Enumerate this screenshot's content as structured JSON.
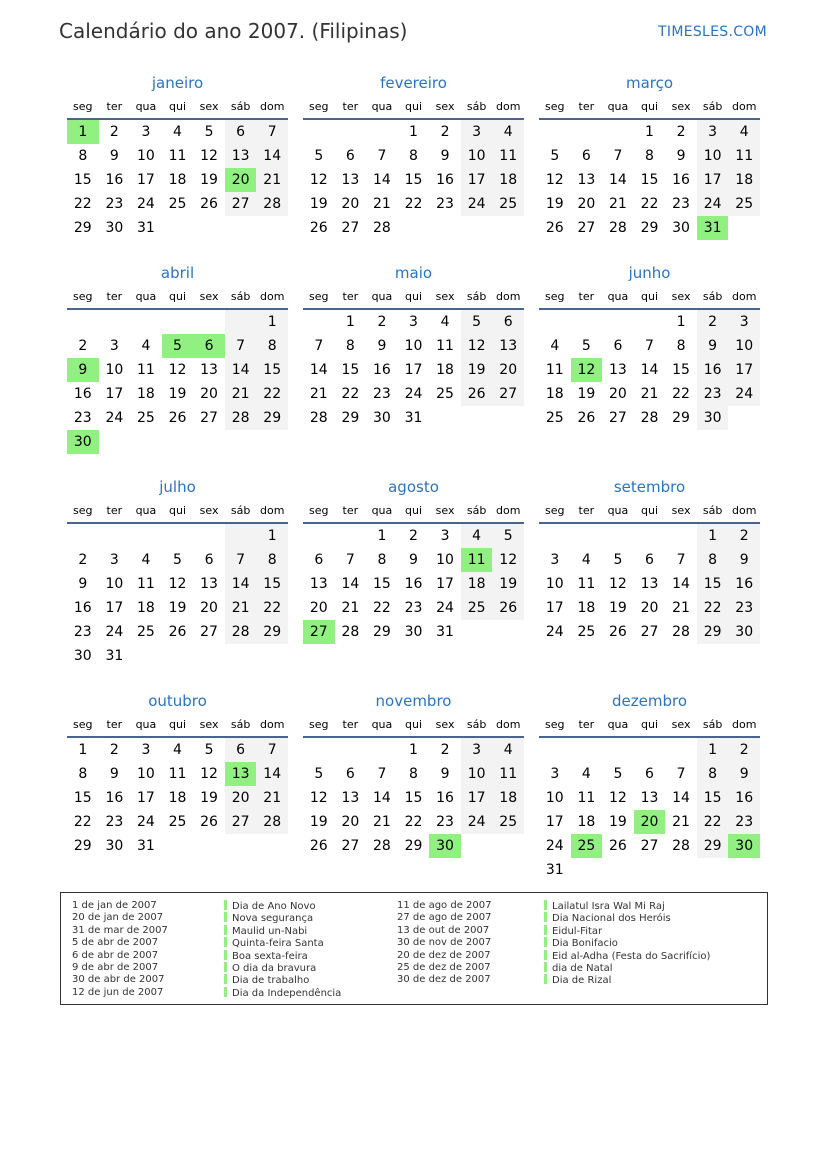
{
  "header": {
    "title": "Calendário do ano 2007. (Filipinas)",
    "brand": "TIMESLES.COM"
  },
  "year": 2007,
  "colors": {
    "accent": "#2a74c0",
    "holiday": "#90f080",
    "weekend": "#f3f3f3",
    "rule": "#4a6490"
  },
  "weekdays": [
    "seg",
    "ter",
    "qua",
    "qui",
    "sex",
    "sáb",
    "dom"
  ],
  "months": [
    {
      "name": "janeiro",
      "holidays": [
        1,
        20
      ]
    },
    {
      "name": "fevereiro",
      "holidays": []
    },
    {
      "name": "março",
      "holidays": [
        31
      ]
    },
    {
      "name": "abril",
      "holidays": [
        5,
        6,
        9,
        30
      ]
    },
    {
      "name": "maio",
      "holidays": []
    },
    {
      "name": "junho",
      "holidays": [
        12
      ]
    },
    {
      "name": "julho",
      "holidays": []
    },
    {
      "name": "agosto",
      "holidays": [
        11,
        27
      ]
    },
    {
      "name": "setembro",
      "holidays": []
    },
    {
      "name": "outubro",
      "holidays": [
        13
      ]
    },
    {
      "name": "novembro",
      "holidays": [
        30
      ]
    },
    {
      "name": "dezembro",
      "holidays": [
        20,
        25,
        30
      ]
    }
  ],
  "holiday_list": [
    {
      "date": "1 de jan de 2007",
      "name": "Dia de Ano Novo"
    },
    {
      "date": "20 de jan de 2007",
      "name": "Nova segurança"
    },
    {
      "date": "31 de mar de 2007",
      "name": "Maulid un-Nabi"
    },
    {
      "date": "5 de abr de 2007",
      "name": "Quinta-feira Santa"
    },
    {
      "date": "6 de abr de 2007",
      "name": "Boa sexta-feira"
    },
    {
      "date": "9 de abr de 2007",
      "name": "O dia da bravura"
    },
    {
      "date": "30 de abr de 2007",
      "name": "Dia de trabalho"
    },
    {
      "date": "12 de jun de 2007",
      "name": "Dia da Independência"
    },
    {
      "date": "11 de ago de 2007",
      "name": "Lailatul Isra Wal Mi Raj"
    },
    {
      "date": "27 de ago de 2007",
      "name": "Dia Nacional dos Heróis"
    },
    {
      "date": "13 de out de 2007",
      "name": "Eidul-Fitar"
    },
    {
      "date": "30 de nov de 2007",
      "name": "Dia Bonifacio"
    },
    {
      "date": "20 de dez de 2007",
      "name": "Eid al-Adha (Festa do Sacrifício)"
    },
    {
      "date": "25 de dez de 2007",
      "name": "dia de Natal"
    },
    {
      "date": "30 de dez de 2007",
      "name": "Dia de Rizal"
    }
  ]
}
